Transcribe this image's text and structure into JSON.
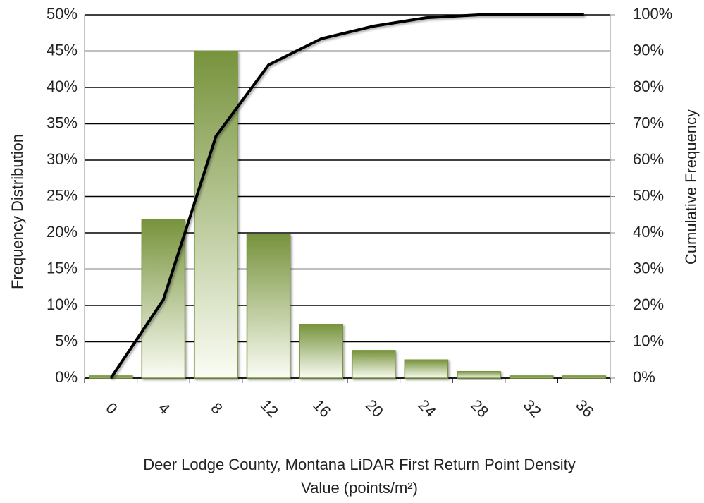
{
  "chart_data": {
    "type": "bar",
    "categories": [
      "0",
      "4",
      "8",
      "12",
      "16",
      "20",
      "24",
      "28",
      "32",
      "36"
    ],
    "series": [
      {
        "type": "bar",
        "color": "#77933c",
        "values": [
          0.3,
          21.8,
          45,
          19.8,
          7.4,
          3.8,
          2.5,
          0.9,
          0.3,
          0.3
        ]
      },
      {
        "type": "line",
        "axis": "y2",
        "color": "#000000",
        "values": [
          0,
          21.6,
          66.6,
          86.2,
          93.4,
          96.9,
          99.2,
          100,
          100,
          100
        ]
      }
    ],
    "ylim": [
      0,
      50
    ],
    "yticks": [
      {
        "value": 0,
        "label": "0%"
      },
      {
        "value": 5,
        "label": "5%"
      },
      {
        "value": 10,
        "label": "10%"
      },
      {
        "value": 15,
        "label": "15%"
      },
      {
        "value": 20,
        "label": "20%"
      },
      {
        "value": 25,
        "label": "25%"
      },
      {
        "value": 30,
        "label": "30%"
      },
      {
        "value": 35,
        "label": "35%"
      },
      {
        "value": 40,
        "label": "40%"
      },
      {
        "value": 45,
        "label": "45%"
      },
      {
        "value": 50,
        "label": "50%"
      }
    ],
    "y2lim": [
      0,
      100
    ],
    "y2ticks": [
      {
        "value": 0,
        "label": "0%"
      },
      {
        "value": 10,
        "label": "10%"
      },
      {
        "value": 20,
        "label": "20%"
      },
      {
        "value": 30,
        "label": "30%"
      },
      {
        "value": 40,
        "label": "40%"
      },
      {
        "value": 50,
        "label": "50%"
      },
      {
        "value": 60,
        "label": "60%"
      },
      {
        "value": 70,
        "label": "70%"
      },
      {
        "value": 80,
        "label": "80%"
      },
      {
        "value": 90,
        "label": "90%"
      },
      {
        "value": 100,
        "label": "100%"
      }
    ],
    "grid": true,
    "ylabel": "Frequency Distribution",
    "y2label": "Cumulative Frequency",
    "xlabel": [
      "Deer Lodge County, Montana LiDAR First Return Point Density",
      "Value (points/m²)"
    ]
  }
}
